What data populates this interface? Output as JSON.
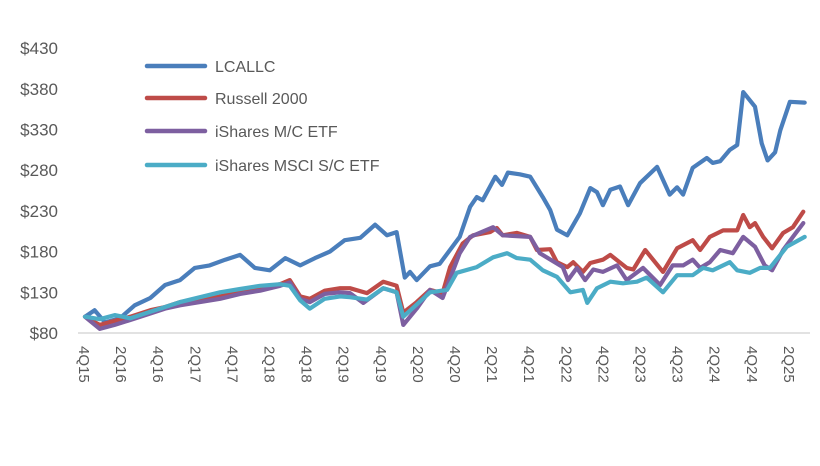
{
  "chart_data": {
    "type": "line",
    "title": "",
    "xlabel": "",
    "ylabel": "",
    "ylim": [
      80,
      430
    ],
    "y_ticks": [
      "$80",
      "$130",
      "$180",
      "$230",
      "$280",
      "$330",
      "$380",
      "$430"
    ],
    "y_tick_values": [
      80,
      130,
      180,
      230,
      280,
      330,
      380,
      430
    ],
    "x_ticks": [
      "4Q15",
      "2Q16",
      "4Q16",
      "2Q17",
      "4Q17",
      "2Q18",
      "4Q18",
      "2Q19",
      "4Q19",
      "2Q20",
      "4Q20",
      "2Q21",
      "4Q21",
      "2Q22",
      "4Q22",
      "2Q23",
      "4Q23",
      "2Q24",
      "4Q24",
      "2Q25"
    ],
    "x_start_year": 2015.75,
    "x_tick_step_years": 0.5,
    "grid": false,
    "legend_placement": "top-left",
    "series": [
      {
        "name": "LCALLC",
        "color": "#4a7ebb",
        "points": [
          [
            2015.75,
            100
          ],
          [
            2015.88,
            108
          ],
          [
            2016.02,
            93
          ],
          [
            2016.22,
            98
          ],
          [
            2016.42,
            114
          ],
          [
            2016.63,
            123
          ],
          [
            2016.83,
            139
          ],
          [
            2017.03,
            145
          ],
          [
            2017.23,
            160
          ],
          [
            2017.43,
            163
          ],
          [
            2017.64,
            170
          ],
          [
            2017.84,
            176
          ],
          [
            2018.04,
            160
          ],
          [
            2018.24,
            157
          ],
          [
            2018.45,
            172
          ],
          [
            2018.65,
            163
          ],
          [
            2018.85,
            172
          ],
          [
            2019.05,
            180
          ],
          [
            2019.25,
            194
          ],
          [
            2019.46,
            197
          ],
          [
            2019.66,
            213
          ],
          [
            2019.82,
            200
          ],
          [
            2019.95,
            204
          ],
          [
            2020.06,
            148
          ],
          [
            2020.13,
            155
          ],
          [
            2020.22,
            145
          ],
          [
            2020.4,
            162
          ],
          [
            2020.53,
            165
          ],
          [
            2020.8,
            198
          ],
          [
            2020.94,
            235
          ],
          [
            2021.03,
            247
          ],
          [
            2021.11,
            243
          ],
          [
            2021.28,
            272
          ],
          [
            2021.37,
            262
          ],
          [
            2021.45,
            277
          ],
          [
            2021.61,
            275
          ],
          [
            2021.75,
            272
          ],
          [
            2021.92,
            247
          ],
          [
            2022.02,
            231
          ],
          [
            2022.11,
            207
          ],
          [
            2022.25,
            200
          ],
          [
            2022.42,
            227
          ],
          [
            2022.56,
            258
          ],
          [
            2022.65,
            253
          ],
          [
            2022.73,
            237
          ],
          [
            2022.83,
            256
          ],
          [
            2022.96,
            260
          ],
          [
            2023.07,
            237
          ],
          [
            2023.23,
            264
          ],
          [
            2023.46,
            284
          ],
          [
            2023.63,
            250
          ],
          [
            2023.73,
            259
          ],
          [
            2023.81,
            250
          ],
          [
            2023.94,
            283
          ],
          [
            2024.13,
            295
          ],
          [
            2024.21,
            289
          ],
          [
            2024.31,
            291
          ],
          [
            2024.44,
            305
          ],
          [
            2024.54,
            311
          ],
          [
            2024.62,
            376
          ],
          [
            2024.78,
            358
          ],
          [
            2024.87,
            313
          ],
          [
            2024.95,
            292
          ],
          [
            2025.05,
            302
          ],
          [
            2025.12,
            329
          ],
          [
            2025.25,
            364
          ],
          [
            2025.45,
            363
          ]
        ]
      },
      {
        "name": "Russell 2000",
        "color": "#be4b48",
        "points": [
          [
            2015.75,
            100
          ],
          [
            2015.95,
            90
          ],
          [
            2016.15,
            95
          ],
          [
            2016.36,
            100
          ],
          [
            2016.63,
            108
          ],
          [
            2016.83,
            112
          ],
          [
            2017.03,
            118
          ],
          [
            2017.3,
            120
          ],
          [
            2017.57,
            125
          ],
          [
            2017.84,
            130
          ],
          [
            2018.11,
            135
          ],
          [
            2018.38,
            140
          ],
          [
            2018.51,
            145
          ],
          [
            2018.65,
            125
          ],
          [
            2018.78,
            122
          ],
          [
            2018.98,
            132
          ],
          [
            2019.19,
            135
          ],
          [
            2019.32,
            135
          ],
          [
            2019.55,
            129
          ],
          [
            2019.77,
            143
          ],
          [
            2019.95,
            138
          ],
          [
            2020.04,
            105
          ],
          [
            2020.22,
            118
          ],
          [
            2020.4,
            133
          ],
          [
            2020.57,
            129
          ],
          [
            2020.67,
            161
          ],
          [
            2020.84,
            190
          ],
          [
            2020.98,
            200
          ],
          [
            2021.21,
            204
          ],
          [
            2021.3,
            209
          ],
          [
            2021.38,
            200
          ],
          [
            2021.57,
            203
          ],
          [
            2021.75,
            198
          ],
          [
            2021.84,
            182
          ],
          [
            2022.02,
            183
          ],
          [
            2022.11,
            167
          ],
          [
            2022.25,
            161
          ],
          [
            2022.33,
            167
          ],
          [
            2022.46,
            155
          ],
          [
            2022.56,
            166
          ],
          [
            2022.73,
            170
          ],
          [
            2022.83,
            176
          ],
          [
            2023.05,
            160
          ],
          [
            2023.14,
            158
          ],
          [
            2023.3,
            182
          ],
          [
            2023.54,
            155
          ],
          [
            2023.73,
            184
          ],
          [
            2023.94,
            194
          ],
          [
            2024.04,
            182
          ],
          [
            2024.17,
            198
          ],
          [
            2024.35,
            206
          ],
          [
            2024.54,
            206
          ],
          [
            2024.62,
            225
          ],
          [
            2024.71,
            210
          ],
          [
            2024.78,
            215
          ],
          [
            2024.89,
            198
          ],
          [
            2025.01,
            184
          ],
          [
            2025.16,
            203
          ],
          [
            2025.29,
            210
          ],
          [
            2025.43,
            229
          ]
        ]
      },
      {
        "name": "iShares M/C ETF",
        "color": "#7d5fa0",
        "points": [
          [
            2015.75,
            100
          ],
          [
            2015.95,
            85
          ],
          [
            2016.15,
            90
          ],
          [
            2016.36,
            96
          ],
          [
            2016.63,
            104
          ],
          [
            2016.83,
            110
          ],
          [
            2017.03,
            114
          ],
          [
            2017.3,
            118
          ],
          [
            2017.57,
            122
          ],
          [
            2017.84,
            128
          ],
          [
            2018.11,
            132
          ],
          [
            2018.38,
            138
          ],
          [
            2018.51,
            142
          ],
          [
            2018.65,
            122
          ],
          [
            2018.78,
            118
          ],
          [
            2018.98,
            128
          ],
          [
            2019.19,
            130
          ],
          [
            2019.32,
            129
          ],
          [
            2019.5,
            117
          ],
          [
            2019.77,
            135
          ],
          [
            2019.95,
            130
          ],
          [
            2020.04,
            90
          ],
          [
            2020.22,
            110
          ],
          [
            2020.4,
            133
          ],
          [
            2020.57,
            123
          ],
          [
            2020.8,
            178
          ],
          [
            2020.94,
            198
          ],
          [
            2021.25,
            210
          ],
          [
            2021.38,
            200
          ],
          [
            2021.75,
            198
          ],
          [
            2021.88,
            178
          ],
          [
            2022.19,
            161
          ],
          [
            2022.26,
            145
          ],
          [
            2022.38,
            160
          ],
          [
            2022.49,
            145
          ],
          [
            2022.6,
            158
          ],
          [
            2022.73,
            155
          ],
          [
            2022.92,
            163
          ],
          [
            2023.05,
            145
          ],
          [
            2023.27,
            160
          ],
          [
            2023.5,
            139
          ],
          [
            2023.67,
            163
          ],
          [
            2023.81,
            163
          ],
          [
            2023.94,
            170
          ],
          [
            2024.04,
            160
          ],
          [
            2024.17,
            167
          ],
          [
            2024.31,
            182
          ],
          [
            2024.48,
            178
          ],
          [
            2024.62,
            198
          ],
          [
            2024.78,
            186
          ],
          [
            2024.91,
            163
          ],
          [
            2025.01,
            157
          ],
          [
            2025.16,
            182
          ],
          [
            2025.29,
            198
          ],
          [
            2025.43,
            215
          ]
        ]
      },
      {
        "name": "iShares MSCI S/C ETF",
        "color": "#4bacc6",
        "points": [
          [
            2015.75,
            100
          ],
          [
            2015.95,
            97
          ],
          [
            2016.15,
            102
          ],
          [
            2016.36,
            98
          ],
          [
            2016.63,
            106
          ],
          [
            2016.83,
            112
          ],
          [
            2017.03,
            118
          ],
          [
            2017.3,
            124
          ],
          [
            2017.57,
            130
          ],
          [
            2017.84,
            134
          ],
          [
            2018.11,
            138
          ],
          [
            2018.38,
            140
          ],
          [
            2018.51,
            138
          ],
          [
            2018.65,
            120
          ],
          [
            2018.78,
            110
          ],
          [
            2018.98,
            122
          ],
          [
            2019.19,
            125
          ],
          [
            2019.32,
            124
          ],
          [
            2019.55,
            121
          ],
          [
            2019.77,
            135
          ],
          [
            2019.95,
            130
          ],
          [
            2020.04,
            100
          ],
          [
            2020.22,
            115
          ],
          [
            2020.4,
            130
          ],
          [
            2020.63,
            133
          ],
          [
            2020.76,
            154
          ],
          [
            2021.03,
            161
          ],
          [
            2021.25,
            173
          ],
          [
            2021.44,
            178
          ],
          [
            2021.57,
            172
          ],
          [
            2021.75,
            170
          ],
          [
            2021.92,
            157
          ],
          [
            2022.11,
            149
          ],
          [
            2022.29,
            130
          ],
          [
            2022.46,
            133
          ],
          [
            2022.52,
            117
          ],
          [
            2022.65,
            135
          ],
          [
            2022.83,
            143
          ],
          [
            2023.0,
            141
          ],
          [
            2023.19,
            143
          ],
          [
            2023.32,
            148
          ],
          [
            2023.54,
            130
          ],
          [
            2023.73,
            151
          ],
          [
            2023.94,
            151
          ],
          [
            2024.08,
            160
          ],
          [
            2024.21,
            157
          ],
          [
            2024.44,
            167
          ],
          [
            2024.54,
            157
          ],
          [
            2024.71,
            154
          ],
          [
            2024.85,
            160
          ],
          [
            2024.98,
            160
          ],
          [
            2025.21,
            186
          ],
          [
            2025.45,
            198
          ]
        ]
      }
    ]
  }
}
